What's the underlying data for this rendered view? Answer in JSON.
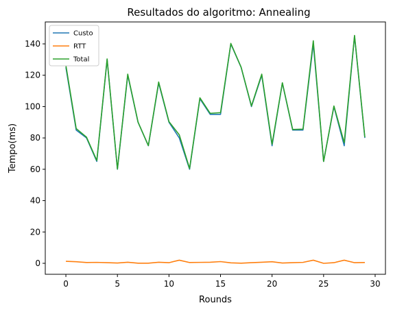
{
  "chart_data": {
    "type": "line",
    "title": "Resultados do algoritmo: Annealing",
    "xlabel": "Rounds",
    "ylabel": "Tempo(ms)",
    "xlim": [
      -2,
      31
    ],
    "ylim": [
      -7,
      154
    ],
    "xticks": [
      0,
      5,
      10,
      15,
      20,
      25,
      30
    ],
    "yticks": [
      0,
      20,
      40,
      60,
      80,
      100,
      120,
      140
    ],
    "legend_position": "top-left",
    "x": [
      0,
      1,
      2,
      3,
      4,
      5,
      6,
      7,
      8,
      9,
      10,
      11,
      12,
      13,
      14,
      15,
      16,
      17,
      18,
      19,
      20,
      21,
      22,
      23,
      24,
      25,
      26,
      27,
      28,
      29
    ],
    "series": [
      {
        "name": "Custo",
        "color": "#1f77b4",
        "values": [
          125,
          85,
          80,
          65,
          130,
          60,
          120,
          90,
          75,
          115,
          90,
          80,
          60,
          105,
          95,
          95,
          140,
          125,
          100,
          120,
          75,
          115,
          85,
          85,
          140,
          65,
          100,
          75,
          145,
          80
        ]
      },
      {
        "name": "RTT",
        "color": "#ff7f0e",
        "values": [
          1.3,
          1.0,
          0.5,
          0.6,
          0.4,
          0.2,
          0.7,
          0.1,
          0.1,
          0.7,
          0.4,
          2.0,
          0.5,
          0.6,
          0.7,
          1.1,
          0.3,
          0.1,
          0.4,
          0.7,
          1.0,
          0.2,
          0.4,
          0.6,
          2.0,
          0.0,
          0.4,
          2.0,
          0.4,
          0.5
        ]
      },
      {
        "name": "Total",
        "color": "#2ca02c",
        "values": [
          126.3,
          86,
          80.5,
          65.6,
          130.4,
          60.2,
          120.7,
          90.1,
          75.1,
          115.7,
          90.4,
          82,
          60.5,
          105.6,
          95.7,
          96.1,
          140.3,
          125.1,
          100.4,
          120.7,
          76,
          115.2,
          85.4,
          85.6,
          142,
          65,
          100.4,
          77,
          145.4,
          80.5
        ]
      }
    ]
  }
}
